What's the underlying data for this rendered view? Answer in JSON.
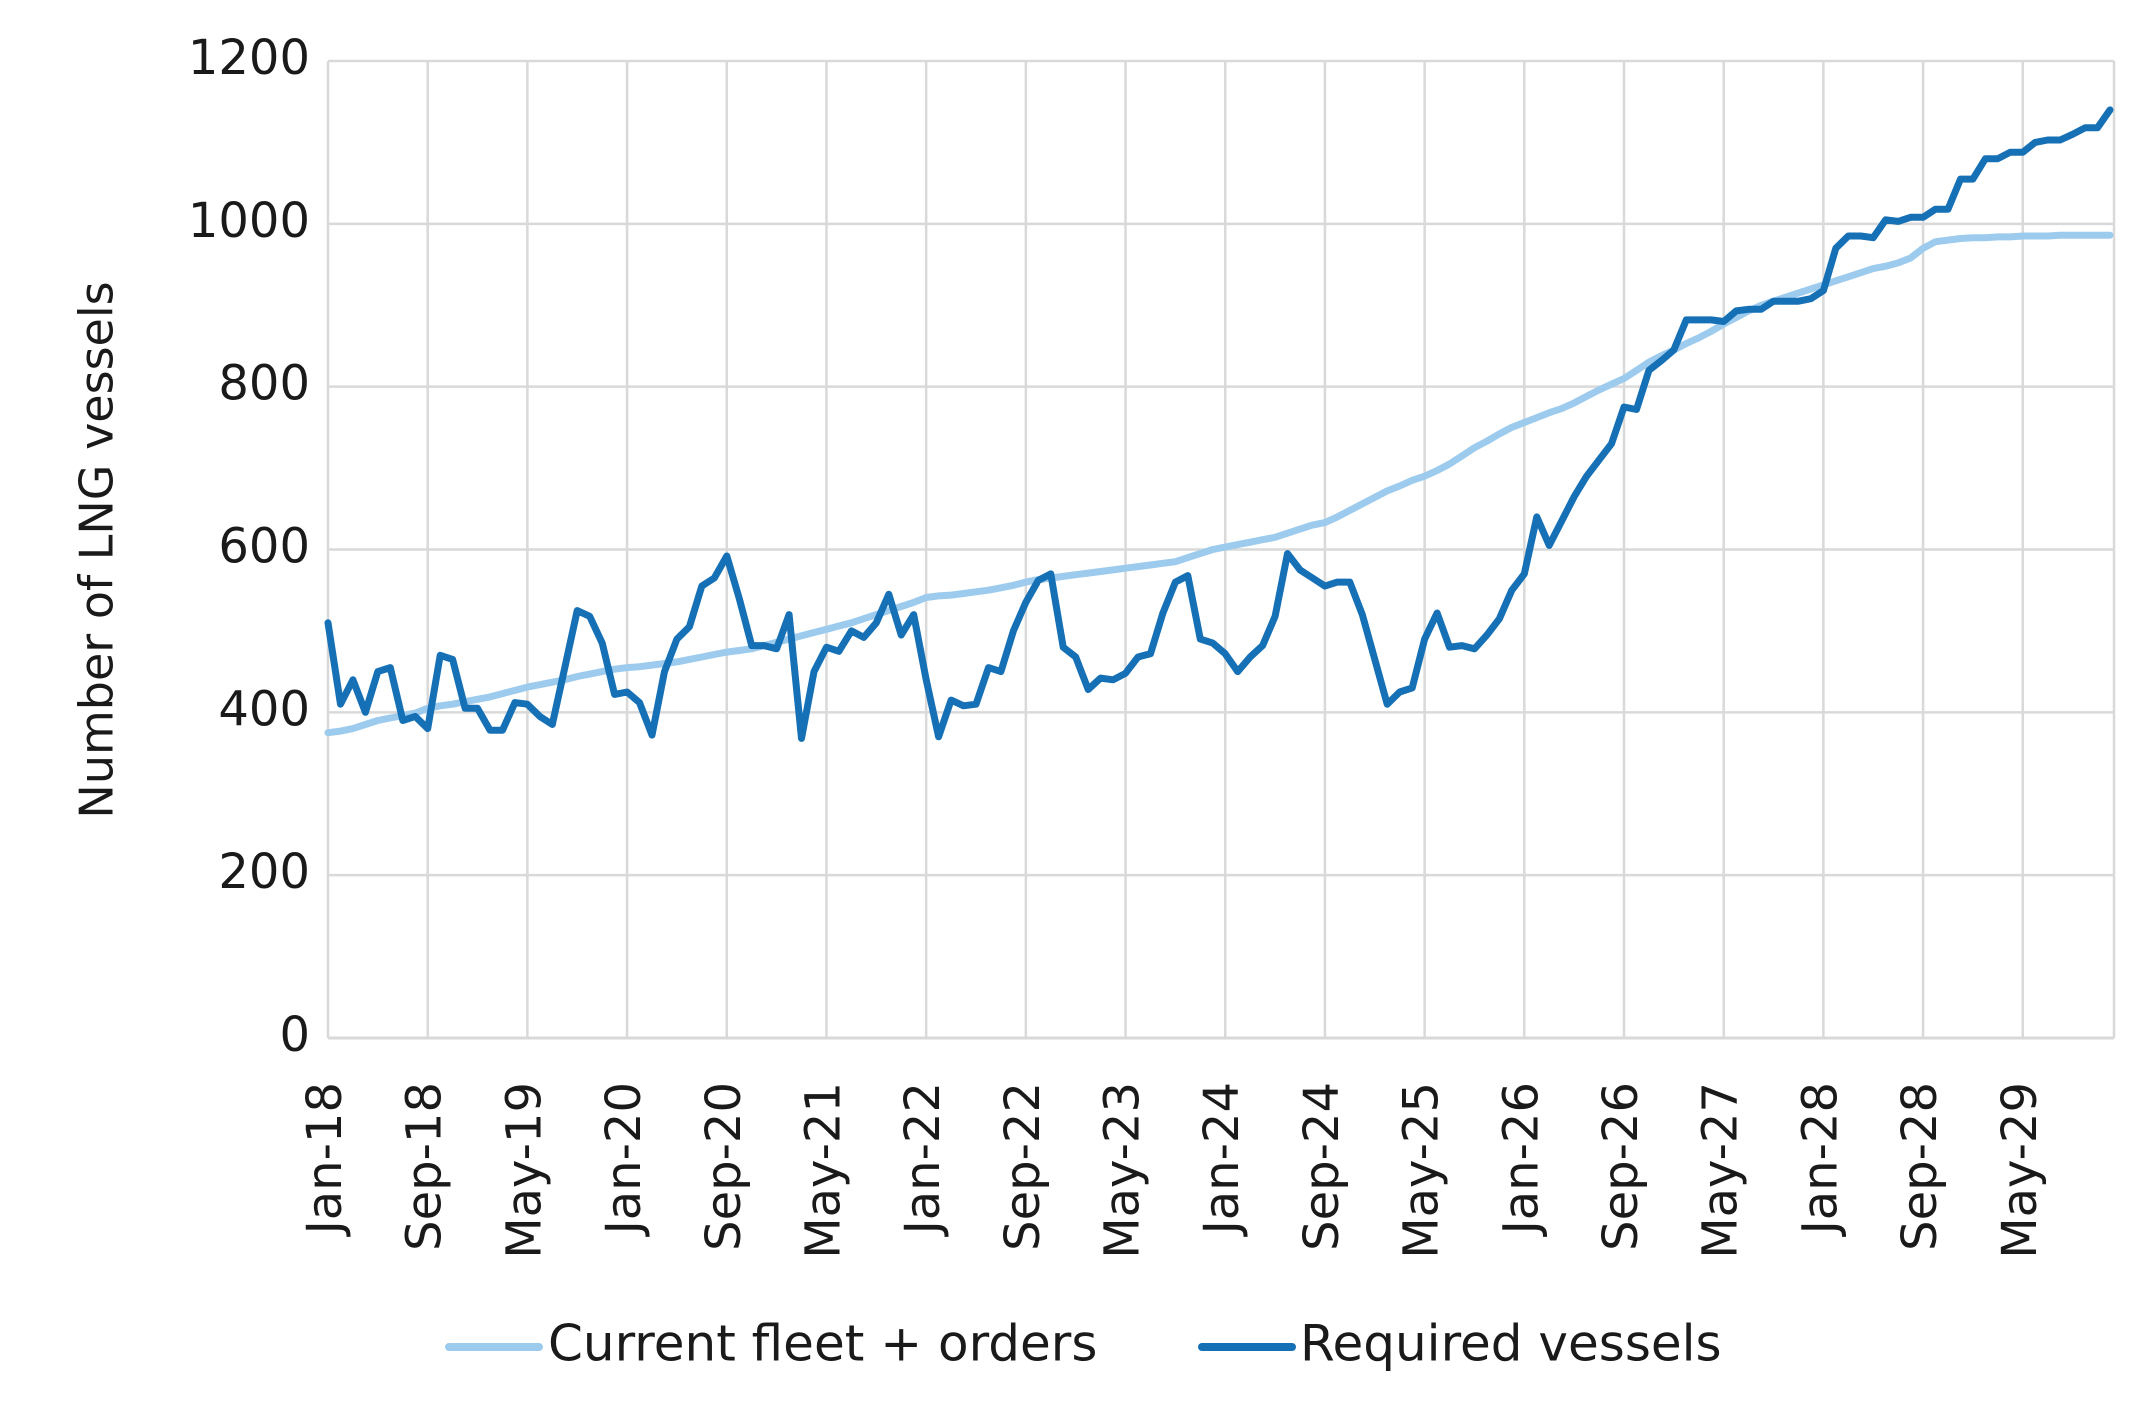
{
  "chart_data": {
    "type": "line",
    "y_label": "Number of LNG vessels",
    "categories": [
      "Jan-18",
      null,
      null,
      null,
      null,
      null,
      null,
      null,
      "Sep-18",
      null,
      null,
      null,
      null,
      null,
      null,
      null,
      "May-19",
      null,
      null,
      null,
      null,
      null,
      null,
      null,
      "Jan-20",
      null,
      null,
      null,
      null,
      null,
      null,
      null,
      "Sep-20",
      null,
      null,
      null,
      null,
      null,
      null,
      null,
      "May-21",
      null,
      null,
      null,
      null,
      null,
      null,
      null,
      "Jan-22",
      null,
      null,
      null,
      null,
      null,
      null,
      null,
      "Sep-22",
      null,
      null,
      null,
      null,
      null,
      null,
      null,
      "May-23",
      null,
      null,
      null,
      null,
      null,
      null,
      null,
      "Jan-24",
      null,
      null,
      null,
      null,
      null,
      null,
      null,
      "Sep-24",
      null,
      null,
      null,
      null,
      null,
      null,
      null,
      "May-25",
      null,
      null,
      null,
      null,
      null,
      null,
      null,
      "Jan-26",
      null,
      null,
      null,
      null,
      null,
      null,
      null,
      "Sep-26",
      null,
      null,
      null,
      null,
      null,
      null,
      null,
      "May-27",
      null,
      null,
      null,
      null,
      null,
      null,
      null,
      "Jan-28",
      null,
      null,
      null,
      null,
      null,
      null,
      null,
      "Sep-28",
      null,
      null,
      null,
      null,
      null,
      null,
      null,
      "May-29",
      null,
      null,
      null,
      null,
      null,
      null,
      null
    ],
    "series": [
      {
        "name": "Current fleet + orders",
        "color": "#9dcbee",
        "values": [
          375,
          377,
          380,
          385,
          390,
          393,
          396,
          399,
          405,
          408,
          410,
          413,
          416,
          419,
          423,
          427,
          431,
          434,
          437,
          440,
          444,
          447,
          450,
          453,
          455,
          456,
          458,
          460,
          462,
          465,
          468,
          471,
          474,
          476,
          478,
          482,
          486,
          490,
          494,
          498,
          502,
          506,
          510,
          515,
          520,
          525,
          530,
          535,
          541,
          543,
          544,
          546,
          548,
          550,
          553,
          556,
          560,
          563,
          565,
          567,
          569,
          571,
          573,
          575,
          577,
          579,
          581,
          583,
          585,
          590,
          595,
          600,
          603,
          606,
          609,
          612,
          615,
          620,
          625,
          630,
          633,
          640,
          648,
          656,
          664,
          672,
          678,
          685,
          690,
          697,
          705,
          715,
          725,
          733,
          742,
          750,
          756,
          762,
          768,
          773,
          780,
          788,
          796,
          803,
          810,
          820,
          830,
          838,
          845,
          853,
          860,
          868,
          877,
          885,
          893,
          900,
          905,
          910,
          915,
          920,
          925,
          930,
          935,
          940,
          945,
          948,
          952,
          958,
          970,
          978,
          980,
          982,
          983,
          983,
          984,
          984,
          985,
          985,
          985,
          986,
          986,
          986,
          986,
          986
        ]
      },
      {
        "name": "Required vessels",
        "color": "#1670b5",
        "values": [
          510,
          410,
          440,
          400,
          450,
          455,
          390,
          395,
          380,
          470,
          465,
          405,
          405,
          378,
          378,
          412,
          410,
          395,
          385,
          455,
          525,
          518,
          485,
          422,
          425,
          412,
          372,
          450,
          490,
          505,
          555,
          565,
          592,
          540,
          482,
          482,
          478,
          520,
          368,
          450,
          480,
          475,
          500,
          492,
          510,
          545,
          495,
          520,
          440,
          370,
          415,
          408,
          410,
          455,
          450,
          500,
          535,
          562,
          570,
          480,
          468,
          428,
          442,
          440,
          448,
          468,
          472,
          522,
          560,
          568,
          490,
          485,
          472,
          450,
          468,
          482,
          518,
          595,
          575,
          565,
          555,
          560,
          560,
          520,
          465,
          410,
          425,
          430,
          490,
          522,
          480,
          482,
          478,
          495,
          515,
          550,
          570,
          640,
          605,
          635,
          665,
          690,
          710,
          730,
          775,
          772,
          820,
          832,
          845,
          882,
          882,
          882,
          880,
          893,
          895,
          895,
          905,
          905,
          905,
          908,
          918,
          970,
          985,
          985,
          983,
          1005,
          1003,
          1008,
          1008,
          1018,
          1018,
          1055,
          1055,
          1080,
          1080,
          1088,
          1088,
          1100,
          1103,
          1103,
          1110,
          1118,
          1118,
          1140
        ]
      }
    ],
    "ylim": [
      0,
      1200
    ],
    "yticks": [
      0,
      200,
      400,
      600,
      800,
      1000,
      1200
    ],
    "grid": true,
    "legend": "bottom"
  }
}
